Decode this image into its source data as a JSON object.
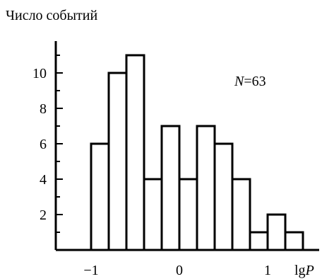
{
  "chart_data": {
    "type": "bar",
    "title": "",
    "ylabel": "Число событий",
    "xlabel_prefix": "lg",
    "xlabel_var": "P",
    "annotation_var": "N",
    "annotation_value": "=63",
    "xlim": [
      -1.15,
      1.2
    ],
    "ylim": [
      0,
      12
    ],
    "x_ticks": [
      {
        "value": -1,
        "label": "−1"
      },
      {
        "value": 0,
        "label": "0"
      },
      {
        "value": 1,
        "label": "1"
      }
    ],
    "y_ticks": [
      {
        "value": 2,
        "label": "2"
      },
      {
        "value": 4,
        "label": "4"
      },
      {
        "value": 6,
        "label": "6"
      },
      {
        "value": 8,
        "label": "8"
      },
      {
        "value": 10,
        "label": "10"
      }
    ],
    "bin_width": 0.2,
    "bin_starts": [
      -1.0,
      -0.8,
      -0.6,
      -0.4,
      -0.2,
      0.0,
      0.2,
      0.4,
      0.6,
      0.8,
      1.0,
      1.2
    ],
    "values": [
      6,
      10,
      11,
      4,
      7,
      4,
      7,
      6,
      4,
      1,
      2,
      1
    ]
  }
}
